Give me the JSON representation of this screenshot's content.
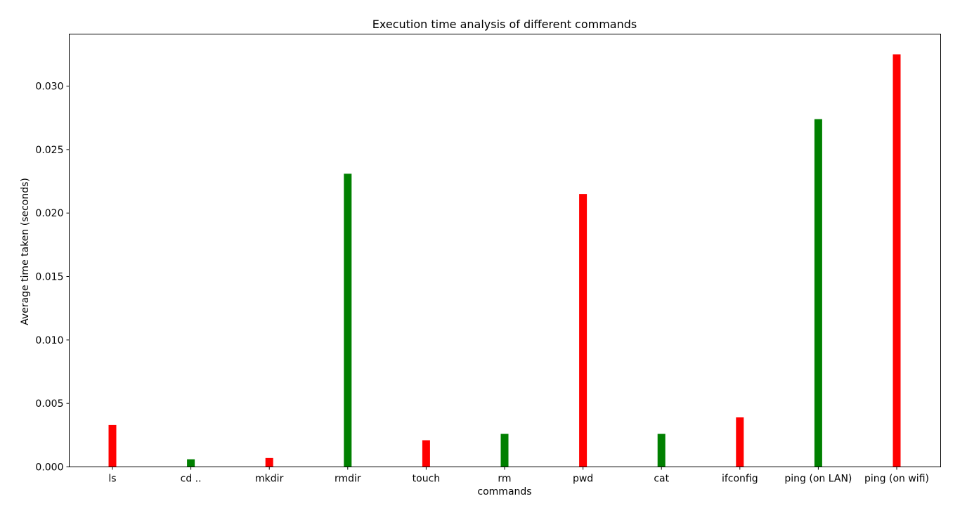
{
  "chart_data": {
    "type": "bar",
    "title": "Execution time analysis of different commands",
    "xlabel": "commands",
    "ylabel": "Average time taken (seconds)",
    "categories": [
      "ls",
      "cd ..",
      "mkdir",
      "rmdir",
      "touch",
      "rm",
      "pwd",
      "cat",
      "ifconfig",
      "ping (on LAN)",
      "ping (on wifi)"
    ],
    "values": [
      0.0033,
      0.0006,
      0.0007,
      0.0231,
      0.0021,
      0.0026,
      0.0215,
      0.0026,
      0.0039,
      0.0274,
      0.0325
    ],
    "bar_colors": [
      "#ff0000",
      "#008000",
      "#ff0000",
      "#008000",
      "#ff0000",
      "#008000",
      "#ff0000",
      "#008000",
      "#ff0000",
      "#008000",
      "#ff0000"
    ],
    "yticks": [
      0.0,
      0.005,
      0.01,
      0.015,
      0.02,
      0.025,
      0.03
    ],
    "ytick_labels": [
      "0.000",
      "0.005",
      "0.010",
      "0.015",
      "0.020",
      "0.025",
      "0.030"
    ],
    "ylim": [
      0,
      0.0341
    ],
    "grid": false,
    "legend": "none"
  }
}
